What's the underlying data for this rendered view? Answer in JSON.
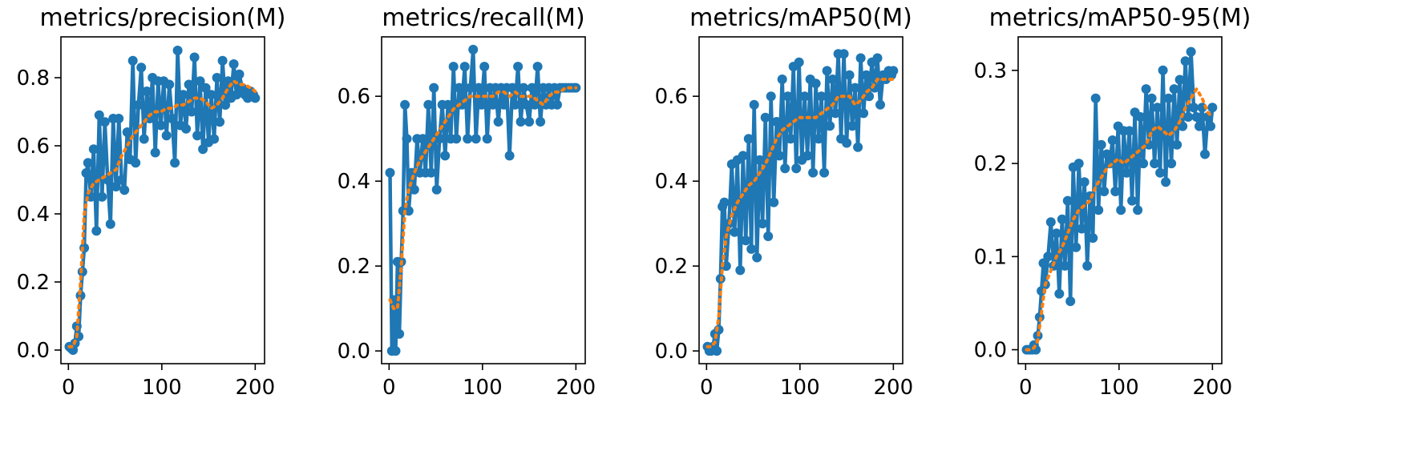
{
  "colors": {
    "raw": "#1f77b4",
    "smooth": "#ff7f0e"
  },
  "chart_data": [
    {
      "type": "line",
      "title": "metrics/precision(M)",
      "xlabel": "",
      "ylabel": "",
      "xlim": [
        -8,
        210
      ],
      "ylim": [
        -0.04,
        0.92
      ],
      "xticks": [
        0,
        100,
        200
      ],
      "xtick_labels": [
        "0",
        "100",
        "200"
      ],
      "yticks": [
        0,
        0.2,
        0.4,
        0.6,
        0.8
      ],
      "ytick_labels": [
        "0.0",
        "0.2",
        "0.4",
        "0.6",
        "0.8"
      ],
      "grid": false,
      "series": [
        {
          "x": [
            1,
            3,
            5,
            7,
            9,
            11,
            13,
            15,
            17,
            19,
            21,
            24,
            27,
            30,
            33,
            36,
            39,
            42,
            45,
            48,
            51,
            54,
            57,
            60,
            63,
            66,
            69,
            72,
            75,
            78,
            81,
            84,
            87,
            90,
            93,
            96,
            99,
            102,
            105,
            108,
            111,
            114,
            117,
            120,
            123,
            126,
            129,
            132,
            135,
            138,
            141,
            144,
            147,
            150,
            153,
            156,
            159,
            162,
            165,
            168,
            171,
            174,
            177,
            180,
            183,
            186,
            189,
            192,
            195,
            198,
            200
          ],
          "y": [
            0.01,
            0.005,
            0.0,
            0.02,
            0.07,
            0.04,
            0.16,
            0.23,
            0.3,
            0.52,
            0.55,
            0.45,
            0.59,
            0.35,
            0.69,
            0.45,
            0.67,
            0.5,
            0.37,
            0.68,
            0.48,
            0.68,
            0.5,
            0.47,
            0.64,
            0.56,
            0.85,
            0.55,
            0.72,
            0.83,
            0.62,
            0.76,
            0.68,
            0.8,
            0.58,
            0.79,
            0.66,
            0.79,
            0.63,
            0.78,
            0.68,
            0.55,
            0.88,
            0.66,
            0.75,
            0.65,
            0.78,
            0.7,
            0.86,
            0.63,
            0.79,
            0.59,
            0.77,
            0.61,
            0.75,
            0.62,
            0.8,
            0.67,
            0.85,
            0.72,
            0.79,
            0.74,
            0.84,
            0.75,
            0.81,
            0.77,
            0.75,
            0.74,
            0.76,
            0.75,
            0.74
          ]
        },
        {
          "x": [
            1,
            5,
            9,
            13,
            17,
            21,
            27,
            33,
            39,
            45,
            51,
            57,
            63,
            69,
            75,
            81,
            87,
            93,
            99,
            105,
            111,
            117,
            123,
            129,
            135,
            141,
            147,
            153,
            159,
            165,
            171,
            177,
            183,
            189,
            195,
            200
          ],
          "y": [
            0.01,
            0.01,
            0.04,
            0.2,
            0.4,
            0.46,
            0.49,
            0.5,
            0.51,
            0.52,
            0.53,
            0.57,
            0.6,
            0.63,
            0.65,
            0.67,
            0.69,
            0.7,
            0.7,
            0.71,
            0.71,
            0.72,
            0.72,
            0.73,
            0.74,
            0.74,
            0.73,
            0.71,
            0.72,
            0.74,
            0.77,
            0.79,
            0.78,
            0.78,
            0.77,
            0.76
          ]
        }
      ]
    },
    {
      "type": "line",
      "title": "metrics/recall(M)",
      "xlabel": "",
      "ylabel": "",
      "xlim": [
        -8,
        210
      ],
      "ylim": [
        -0.03,
        0.74
      ],
      "xticks": [
        0,
        100,
        200
      ],
      "xtick_labels": [
        "0",
        "100",
        "200"
      ],
      "yticks": [
        0,
        0.2,
        0.4,
        0.6
      ],
      "ytick_labels": [
        "0.0",
        "0.2",
        "0.4",
        "0.6"
      ],
      "grid": false,
      "series": [
        {
          "x": [
            1,
            3,
            5,
            7,
            9,
            11,
            13,
            15,
            17,
            19,
            21,
            24,
            27,
            30,
            33,
            36,
            39,
            42,
            45,
            48,
            51,
            54,
            57,
            60,
            63,
            66,
            69,
            72,
            75,
            78,
            81,
            84,
            87,
            90,
            93,
            96,
            99,
            102,
            105,
            108,
            111,
            114,
            117,
            120,
            123,
            126,
            129,
            132,
            135,
            138,
            141,
            144,
            147,
            150,
            153,
            156,
            159,
            162,
            165,
            168,
            171,
            174,
            177,
            180,
            183,
            186,
            189,
            192,
            195,
            198,
            200
          ],
          "y": [
            0.42,
            0.0,
            0.12,
            0.0,
            0.21,
            0.04,
            0.21,
            0.33,
            0.58,
            0.5,
            0.33,
            0.42,
            0.38,
            0.5,
            0.42,
            0.5,
            0.42,
            0.58,
            0.42,
            0.62,
            0.38,
            0.5,
            0.58,
            0.46,
            0.58,
            0.5,
            0.67,
            0.5,
            0.62,
            0.58,
            0.67,
            0.5,
            0.62,
            0.71,
            0.5,
            0.62,
            0.58,
            0.67,
            0.5,
            0.62,
            0.58,
            0.62,
            0.54,
            0.62,
            0.58,
            0.62,
            0.46,
            0.62,
            0.58,
            0.67,
            0.54,
            0.62,
            0.58,
            0.54,
            0.62,
            0.58,
            0.67,
            0.54,
            0.62,
            0.58,
            0.62,
            0.58,
            0.62,
            0.58,
            0.62,
            0.62,
            0.62,
            0.62,
            0.62,
            0.62,
            0.62
          ]
        },
        {
          "x": [
            1,
            5,
            9,
            13,
            17,
            21,
            27,
            33,
            39,
            45,
            51,
            57,
            63,
            69,
            75,
            81,
            87,
            93,
            99,
            105,
            111,
            117,
            123,
            129,
            135,
            141,
            147,
            153,
            159,
            165,
            171,
            177,
            183,
            189,
            195,
            200
          ],
          "y": [
            0.12,
            0.1,
            0.1,
            0.2,
            0.33,
            0.38,
            0.42,
            0.45,
            0.47,
            0.49,
            0.51,
            0.53,
            0.55,
            0.57,
            0.58,
            0.59,
            0.6,
            0.6,
            0.6,
            0.6,
            0.6,
            0.61,
            0.61,
            0.6,
            0.61,
            0.6,
            0.6,
            0.6,
            0.59,
            0.58,
            0.6,
            0.61,
            0.61,
            0.62,
            0.62,
            0.62
          ]
        }
      ]
    },
    {
      "type": "line",
      "title": "metrics/mAP50(M)",
      "xlabel": "",
      "ylabel": "",
      "xlim": [
        -8,
        210
      ],
      "ylim": [
        -0.03,
        0.74
      ],
      "xticks": [
        0,
        100,
        200
      ],
      "xtick_labels": [
        "0",
        "100",
        "200"
      ],
      "yticks": [
        0,
        0.2,
        0.4,
        0.6
      ],
      "ytick_labels": [
        "0.0",
        "0.2",
        "0.4",
        "0.6"
      ],
      "grid": false,
      "series": [
        {
          "x": [
            1,
            3,
            5,
            7,
            9,
            11,
            13,
            15,
            17,
            19,
            21,
            24,
            27,
            30,
            33,
            36,
            39,
            42,
            45,
            48,
            51,
            54,
            57,
            60,
            63,
            66,
            69,
            72,
            75,
            78,
            81,
            84,
            87,
            90,
            93,
            96,
            99,
            102,
            105,
            108,
            111,
            114,
            117,
            120,
            123,
            126,
            129,
            132,
            135,
            138,
            141,
            144,
            147,
            150,
            153,
            156,
            159,
            162,
            165,
            168,
            171,
            174,
            177,
            180,
            183,
            186,
            189,
            192,
            195,
            198,
            200
          ],
          "y": [
            0.01,
            0.0,
            0.0,
            0.01,
            0.04,
            0.0,
            0.05,
            0.17,
            0.34,
            0.35,
            0.2,
            0.3,
            0.44,
            0.28,
            0.45,
            0.19,
            0.46,
            0.26,
            0.5,
            0.24,
            0.58,
            0.22,
            0.45,
            0.3,
            0.55,
            0.27,
            0.6,
            0.35,
            0.54,
            0.46,
            0.64,
            0.43,
            0.6,
            0.5,
            0.67,
            0.43,
            0.68,
            0.45,
            0.6,
            0.46,
            0.64,
            0.42,
            0.63,
            0.5,
            0.6,
            0.42,
            0.66,
            0.53,
            0.64,
            0.56,
            0.7,
            0.5,
            0.7,
            0.49,
            0.65,
            0.53,
            0.62,
            0.48,
            0.69,
            0.56,
            0.65,
            0.6,
            0.68,
            0.62,
            0.69,
            0.58,
            0.65,
            0.64,
            0.66,
            0.65,
            0.66
          ]
        },
        {
          "x": [
            1,
            5,
            9,
            13,
            17,
            21,
            27,
            33,
            39,
            45,
            51,
            57,
            63,
            69,
            75,
            81,
            87,
            93,
            99,
            105,
            111,
            117,
            123,
            129,
            135,
            141,
            147,
            153,
            159,
            165,
            171,
            177,
            183,
            189,
            195,
            200
          ],
          "y": [
            0.01,
            0.01,
            0.02,
            0.08,
            0.2,
            0.27,
            0.32,
            0.35,
            0.37,
            0.39,
            0.4,
            0.42,
            0.44,
            0.47,
            0.5,
            0.52,
            0.53,
            0.54,
            0.55,
            0.55,
            0.55,
            0.55,
            0.56,
            0.57,
            0.58,
            0.6,
            0.6,
            0.6,
            0.58,
            0.59,
            0.61,
            0.62,
            0.64,
            0.64,
            0.64,
            0.64
          ]
        }
      ]
    },
    {
      "type": "line",
      "title": "metrics/mAP50-95(M)",
      "xlabel": "",
      "ylabel": "",
      "xlim": [
        -8,
        210
      ],
      "ylim": [
        -0.015,
        0.336
      ],
      "xticks": [
        0,
        100,
        200
      ],
      "xtick_labels": [
        "0",
        "100",
        "200"
      ],
      "yticks": [
        0,
        0.1,
        0.2,
        0.3
      ],
      "ytick_labels": [
        "0.0",
        "0.1",
        "0.2",
        "0.3"
      ],
      "grid": false,
      "series": [
        {
          "x": [
            1,
            3,
            5,
            7,
            9,
            11,
            13,
            15,
            17,
            19,
            21,
            24,
            27,
            30,
            33,
            36,
            39,
            42,
            45,
            48,
            51,
            54,
            57,
            60,
            63,
            66,
            69,
            72,
            75,
            78,
            81,
            84,
            87,
            90,
            93,
            96,
            99,
            102,
            105,
            108,
            111,
            114,
            117,
            120,
            123,
            126,
            129,
            132,
            135,
            138,
            141,
            144,
            147,
            150,
            153,
            156,
            159,
            162,
            165,
            168,
            171,
            174,
            177,
            180,
            183,
            186,
            189,
            192,
            195,
            198,
            200
          ],
          "y": [
            0.0,
            0.0,
            0.0,
            0.0,
            0.005,
            0.0,
            0.015,
            0.035,
            0.063,
            0.093,
            0.07,
            0.1,
            0.137,
            0.09,
            0.125,
            0.06,
            0.14,
            0.09,
            0.16,
            0.052,
            0.196,
            0.11,
            0.2,
            0.13,
            0.18,
            0.09,
            0.165,
            0.12,
            0.27,
            0.15,
            0.22,
            0.17,
            0.21,
            0.2,
            0.225,
            0.17,
            0.24,
            0.15,
            0.235,
            0.19,
            0.235,
            0.16,
            0.255,
            0.15,
            0.25,
            0.2,
            0.28,
            0.22,
            0.27,
            0.2,
            0.26,
            0.19,
            0.3,
            0.18,
            0.27,
            0.2,
            0.28,
            0.22,
            0.29,
            0.24,
            0.31,
            0.25,
            0.32,
            0.26,
            0.25,
            0.24,
            0.26,
            0.21,
            0.25,
            0.24,
            0.26
          ]
        },
        {
          "x": [
            1,
            5,
            9,
            13,
            17,
            21,
            27,
            33,
            39,
            45,
            51,
            57,
            63,
            69,
            75,
            81,
            87,
            93,
            99,
            105,
            111,
            117,
            123,
            129,
            135,
            141,
            147,
            153,
            159,
            165,
            171,
            177,
            183,
            189,
            195,
            200
          ],
          "y": [
            0.0,
            0.0,
            0.002,
            0.01,
            0.04,
            0.07,
            0.085,
            0.1,
            0.11,
            0.125,
            0.14,
            0.15,
            0.155,
            0.16,
            0.175,
            0.185,
            0.195,
            0.2,
            0.205,
            0.2,
            0.205,
            0.21,
            0.215,
            0.22,
            0.235,
            0.24,
            0.235,
            0.23,
            0.235,
            0.245,
            0.26,
            0.27,
            0.28,
            0.27,
            0.255,
            0.25
          ]
        }
      ]
    }
  ]
}
